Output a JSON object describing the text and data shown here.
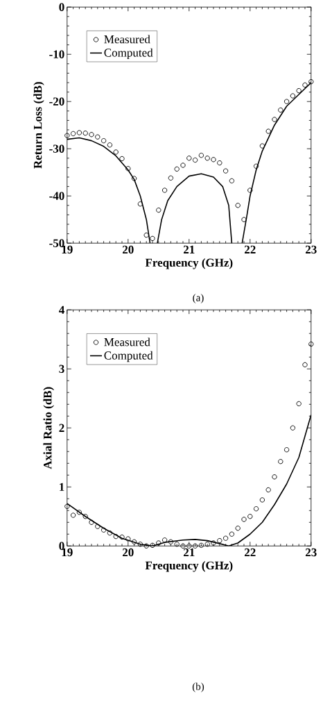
{
  "chart_data": [
    {
      "type": "line",
      "xlabel": "Frequency (GHz)",
      "ylabel": "Return Loss (dB)",
      "annotations": [
        "(a)"
      ],
      "xlim": [
        19,
        23
      ],
      "xticks": [
        19,
        20,
        21,
        22,
        23
      ],
      "ylim": [
        -50,
        0
      ],
      "yticks": [
        -50,
        -40,
        -30,
        -20,
        -10,
        0
      ],
      "legend": "top left",
      "series": [
        {
          "name": "Measured",
          "type": "scatter",
          "marker": "circle",
          "color": "#000000",
          "x": [
            19.0,
            19.1,
            19.2,
            19.3,
            19.4,
            19.5,
            19.6,
            19.7,
            19.8,
            19.9,
            20.0,
            20.1,
            20.2,
            20.3,
            20.4,
            20.5,
            20.6,
            20.7,
            20.8,
            20.9,
            21.0,
            21.1,
            21.2,
            21.3,
            21.4,
            21.5,
            21.6,
            21.7,
            21.8,
            21.9,
            22.0,
            22.1,
            22.2,
            22.3,
            22.4,
            22.5,
            22.6,
            22.7,
            22.8,
            22.9,
            23.0
          ],
          "values": [
            -27.2,
            -26.8,
            -26.6,
            -26.7,
            -27,
            -27.5,
            -28.3,
            -29.2,
            -30.7,
            -32.1,
            -34.2,
            -36.3,
            -41.7,
            -48.3,
            -49,
            -43,
            -38.8,
            -36.2,
            -34.3,
            -33.5,
            -32,
            -32.4,
            -31.4,
            -32,
            -32.3,
            -33,
            -34.7,
            -36.8,
            -42,
            -45,
            -38.8,
            -33.7,
            -29.4,
            -26.3,
            -23.8,
            -21.8,
            -20,
            -18.8,
            -17.7,
            -16.5,
            -15.8
          ]
        },
        {
          "name": "Computed",
          "type": "line",
          "marker": "none",
          "line_style": "solid",
          "color": "#000000",
          "x": [
            19.0,
            19.2,
            19.4,
            19.6,
            19.8,
            20.0,
            20.1,
            20.2,
            20.3,
            20.36,
            20.42,
            20.48,
            20.55,
            20.65,
            20.8,
            21.0,
            21.2,
            21.4,
            21.55,
            21.65,
            21.7,
            21.78,
            21.87,
            21.95,
            22.0,
            22.1,
            22.2,
            22.4,
            22.6,
            22.8,
            23.0
          ],
          "values": [
            -28,
            -27.7,
            -28.3,
            -29.5,
            -31.5,
            -34.5,
            -36.5,
            -40,
            -45,
            -50,
            null,
            -50,
            -45,
            -41,
            -38,
            -35.8,
            -35.3,
            -36,
            -38,
            -42,
            -50,
            null,
            -50,
            -44,
            -40,
            -34.5,
            -30.5,
            -25,
            -21,
            -18.5,
            -16
          ]
        }
      ]
    },
    {
      "type": "line",
      "xlabel": "Frequency (GHz)",
      "ylabel": "Axial Ratio (dB)",
      "annotations": [
        "(b)"
      ],
      "xlim": [
        19,
        23
      ],
      "xticks": [
        19,
        20,
        21,
        22,
        23
      ],
      "ylim": [
        0,
        4
      ],
      "yticks": [
        0,
        1,
        2,
        3,
        4
      ],
      "legend": "top left",
      "series": [
        {
          "name": "Measured",
          "type": "scatter",
          "marker": "circle",
          "color": "#000000",
          "x": [
            19.0,
            19.1,
            19.2,
            19.3,
            19.4,
            19.5,
            19.6,
            19.7,
            19.8,
            19.9,
            20.0,
            20.1,
            20.2,
            20.3,
            20.4,
            20.5,
            20.6,
            20.7,
            20.8,
            20.9,
            21.0,
            21.1,
            21.2,
            21.3,
            21.4,
            21.5,
            21.6,
            21.7,
            21.8,
            21.9,
            22.0,
            22.1,
            22.2,
            22.3,
            22.4,
            22.5,
            22.6,
            22.7,
            22.8,
            22.9,
            23.0
          ],
          "values": [
            0.67,
            0.52,
            0.57,
            0.5,
            0.4,
            0.33,
            0.27,
            0.22,
            0.16,
            0.15,
            0.12,
            0.07,
            0.03,
            0.0,
            0.01,
            0.05,
            0.1,
            0.07,
            0.03,
            0.0,
            0.0,
            0.0,
            0.01,
            0.03,
            0.05,
            0.09,
            0.13,
            0.2,
            0.3,
            0.45,
            0.5,
            0.63,
            0.78,
            0.95,
            1.17,
            1.43,
            1.63,
            2.0,
            2.41,
            3.07,
            3.42
          ]
        },
        {
          "name": "Computed",
          "type": "line",
          "marker": "none",
          "line_style": "solid",
          "color": "#000000",
          "x": [
            19.0,
            19.3,
            19.6,
            19.9,
            20.2,
            20.4,
            20.6,
            20.9,
            21.1,
            21.3,
            21.5,
            21.65,
            21.8,
            22.0,
            22.2,
            22.4,
            22.6,
            22.8,
            23.0
          ],
          "values": [
            0.72,
            0.5,
            0.3,
            0.13,
            0.03,
            0.0,
            0.06,
            0.1,
            0.11,
            0.09,
            0.04,
            0.0,
            0.05,
            0.2,
            0.4,
            0.7,
            1.05,
            1.5,
            2.22
          ]
        }
      ]
    }
  ]
}
